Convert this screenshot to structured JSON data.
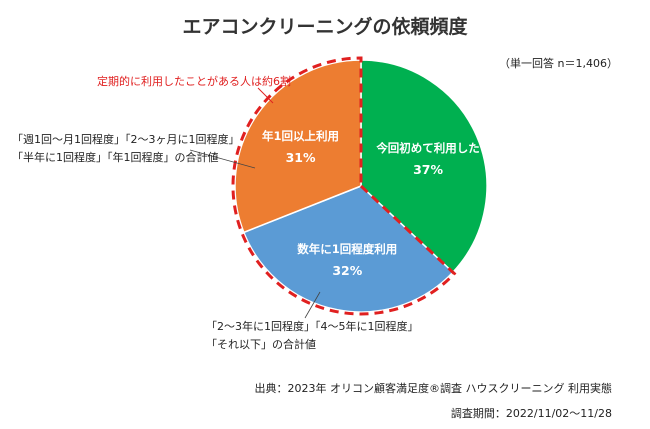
{
  "chart_data": {
    "type": "pie",
    "title": "エアコンクリーニングの依頼頻度",
    "note": "（単一回答 n＝1,406）",
    "slices": [
      {
        "label": "今回初めて利用した",
        "value": 37,
        "value_label": "37%",
        "color": "#00b050"
      },
      {
        "label": "数年に1回程度利用",
        "value": 32,
        "value_label": "32%",
        "color": "#5b9bd5"
      },
      {
        "label": "年1回以上利用",
        "value": 31,
        "value_label": "31%",
        "color": "#ed7d31"
      }
    ],
    "highlight_callout": "定期的に利用したことがある人は約6割",
    "highlight_color": "#e02020",
    "annotations": {
      "left": [
        "「週1回～月1回程度」「2～3ヶ月に1回程度」",
        "「半年に1回程度」「年1回程度」の合計値"
      ],
      "bottom": [
        "「2～3年に1回程度」「4～5年に1回程度」",
        "「それ以下」の合計値"
      ]
    }
  },
  "source": {
    "line1": "出典：2023年 オリコン顧客満足度®調査 ハウスクリーニング 利用実態",
    "line2": "調査期間：2022/11/02～11/28"
  }
}
